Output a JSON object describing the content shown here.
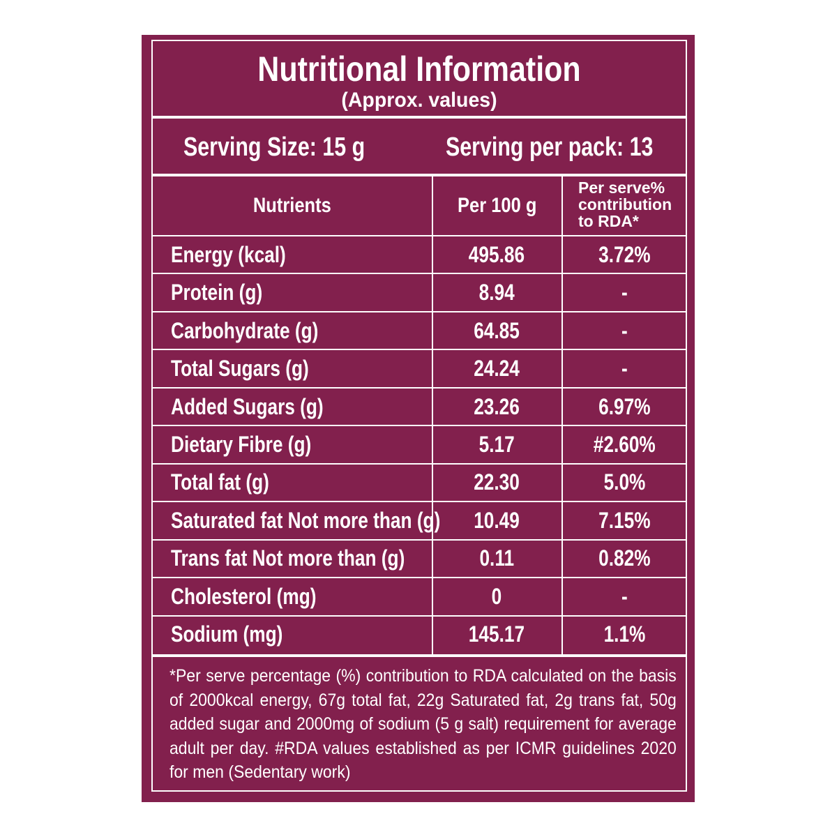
{
  "title": "Nutritional Information",
  "subtitle": "(Approx. values)",
  "serving": {
    "size": "Serving Size: 15 g",
    "per_pack": "Serving per pack: 13"
  },
  "table": {
    "headers": {
      "nutrients": "Nutrients",
      "per100": "Per 100 g",
      "rda": "Per serve% contribution to RDA*"
    },
    "rows": [
      {
        "name": "Energy (kcal)",
        "per100": "495.86",
        "rda": "3.72%"
      },
      {
        "name": "Protein (g)",
        "per100": "8.94",
        "rda": "-"
      },
      {
        "name": "Carbohydrate (g)",
        "per100": "64.85",
        "rda": "-"
      },
      {
        "name": "Total Sugars (g)",
        "per100": "24.24",
        "rda": "-"
      },
      {
        "name": "Added Sugars (g)",
        "per100": "23.26",
        "rda": "6.97%"
      },
      {
        "name": "Dietary Fibre (g)",
        "per100": "5.17",
        "rda": "#2.60%"
      },
      {
        "name": "Total fat (g)",
        "per100": "22.30",
        "rda": "5.0%"
      },
      {
        "name": "Saturated fat Not more than (g)",
        "per100": "10.49",
        "rda": "7.15%"
      },
      {
        "name": "Trans fat Not more than (g)",
        "per100": "0.11",
        "rda": "0.82%"
      },
      {
        "name": "Cholesterol (mg)",
        "per100": "0",
        "rda": "-"
      },
      {
        "name": "Sodium (mg)",
        "per100": "145.17",
        "rda": "1.1%"
      }
    ]
  },
  "footnote": "*Per serve percentage (%) contribution to RDA calculated on the basis of 2000kcal energy, 67g total fat, 22g Saturated fat, 2g trans fat, 50g added sugar and 2000mg of sodium (5 g salt) requirement for average adult per day. #RDA values established as per ICMR guidelines 2020 for men (Sedentary work)",
  "colors": {
    "background": "#82204d",
    "text": "#ffffff",
    "rule": "#ffffff"
  }
}
